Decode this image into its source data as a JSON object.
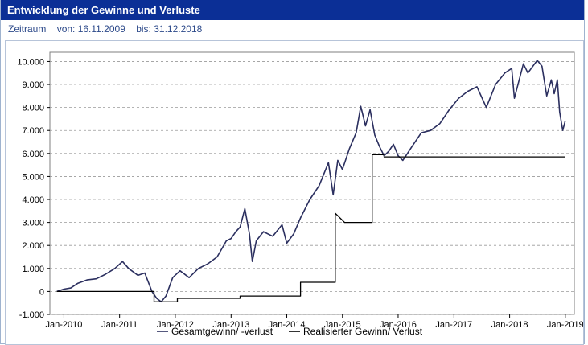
{
  "header": {
    "title": "Entwicklung der Gewinne und Verluste"
  },
  "period": {
    "label": "Zeitraum",
    "from": "von: 16.11.2009",
    "to": "bis: 31.12.2018"
  },
  "colors": {
    "header_bg": "#0b2f96",
    "series_total": "#2b2f5f",
    "series_realized": "#000000",
    "grid": "#9a9a9a"
  },
  "chart_data": {
    "type": "line",
    "xlabel": "",
    "ylabel": "",
    "ylim": [
      -1000,
      10400
    ],
    "yticks": [
      {
        "v": -1000,
        "label": "-1.000"
      },
      {
        "v": 0,
        "label": "0"
      },
      {
        "v": 1000,
        "label": "1.000"
      },
      {
        "v": 2000,
        "label": "2.000"
      },
      {
        "v": 3000,
        "label": "3.000"
      },
      {
        "v": 4000,
        "label": "4.000"
      },
      {
        "v": 5000,
        "label": "5.000"
      },
      {
        "v": 6000,
        "label": "6.000"
      },
      {
        "v": 7000,
        "label": "7.000"
      },
      {
        "v": 8000,
        "label": "8.000"
      },
      {
        "v": 9000,
        "label": "9.000"
      },
      {
        "v": 10000,
        "label": "10.000"
      }
    ],
    "xlim": [
      "2009-10-01",
      "2019-03-01"
    ],
    "xticks": [
      {
        "v": "2010-01-01",
        "label": "Jan-2010"
      },
      {
        "v": "2011-01-01",
        "label": "Jan-2011"
      },
      {
        "v": "2012-01-01",
        "label": "Jan-2012"
      },
      {
        "v": "2013-01-01",
        "label": "Jan-2013"
      },
      {
        "v": "2014-01-01",
        "label": "Jan-2014"
      },
      {
        "v": "2015-01-01",
        "label": "Jan-2015"
      },
      {
        "v": "2016-01-01",
        "label": "Jan-2016"
      },
      {
        "v": "2017-01-01",
        "label": "Jan-2017"
      },
      {
        "v": "2018-01-01",
        "label": "Jan-2018"
      },
      {
        "v": "2019-01-01",
        "label": "Jan-2019"
      }
    ],
    "grid": true,
    "legend": "bottom",
    "series": [
      {
        "name": "Gesamtgewinn/ -verlust",
        "color": "#2b2f5f",
        "points": [
          [
            "2009-11-16",
            0
          ],
          [
            "2010-01-01",
            100
          ],
          [
            "2010-02-15",
            150
          ],
          [
            "2010-04-01",
            350
          ],
          [
            "2010-06-01",
            500
          ],
          [
            "2010-08-01",
            550
          ],
          [
            "2010-10-01",
            750
          ],
          [
            "2010-12-01",
            1000
          ],
          [
            "2011-01-20",
            1300
          ],
          [
            "2011-03-01",
            1000
          ],
          [
            "2011-05-01",
            700
          ],
          [
            "2011-06-15",
            800
          ],
          [
            "2011-08-01",
            0
          ],
          [
            "2011-09-01",
            -300
          ],
          [
            "2011-10-01",
            -450
          ],
          [
            "2011-11-01",
            -200
          ],
          [
            "2011-12-15",
            600
          ],
          [
            "2012-02-01",
            900
          ],
          [
            "2012-04-01",
            600
          ],
          [
            "2012-06-01",
            1000
          ],
          [
            "2012-08-01",
            1200
          ],
          [
            "2012-10-01",
            1500
          ],
          [
            "2012-12-01",
            2200
          ],
          [
            "2013-01-01",
            2300
          ],
          [
            "2013-02-01",
            2600
          ],
          [
            "2013-03-01",
            2800
          ],
          [
            "2013-04-01",
            3600
          ],
          [
            "2013-05-01",
            2500
          ],
          [
            "2013-05-20",
            1300
          ],
          [
            "2013-06-15",
            2200
          ],
          [
            "2013-08-01",
            2600
          ],
          [
            "2013-10-01",
            2400
          ],
          [
            "2013-12-01",
            2900
          ],
          [
            "2014-01-01",
            2100
          ],
          [
            "2014-02-15",
            2500
          ],
          [
            "2014-04-01",
            3200
          ],
          [
            "2014-06-01",
            4000
          ],
          [
            "2014-08-01",
            4600
          ],
          [
            "2014-10-01",
            5600
          ],
          [
            "2014-11-01",
            4200
          ],
          [
            "2014-12-01",
            5700
          ],
          [
            "2015-01-01",
            5300
          ],
          [
            "2015-02-15",
            6200
          ],
          [
            "2015-04-01",
            6900
          ],
          [
            "2015-05-01",
            8050
          ],
          [
            "2015-06-01",
            7200
          ],
          [
            "2015-07-01",
            7900
          ],
          [
            "2015-08-01",
            6800
          ],
          [
            "2015-09-01",
            6300
          ],
          [
            "2015-10-01",
            5900
          ],
          [
            "2015-11-01",
            6100
          ],
          [
            "2015-12-01",
            6400
          ],
          [
            "2016-01-01",
            5900
          ],
          [
            "2016-02-01",
            5700
          ],
          [
            "2016-04-01",
            6300
          ],
          [
            "2016-06-01",
            6900
          ],
          [
            "2016-08-01",
            7000
          ],
          [
            "2016-10-01",
            7300
          ],
          [
            "2016-12-01",
            7900
          ],
          [
            "2017-02-01",
            8400
          ],
          [
            "2017-04-01",
            8700
          ],
          [
            "2017-06-01",
            8900
          ],
          [
            "2017-08-01",
            8000
          ],
          [
            "2017-10-01",
            9000
          ],
          [
            "2017-12-01",
            9500
          ],
          [
            "2018-01-15",
            9700
          ],
          [
            "2018-02-01",
            8400
          ],
          [
            "2018-04-01",
            9900
          ],
          [
            "2018-05-01",
            9500
          ],
          [
            "2018-07-01",
            10050
          ],
          [
            "2018-08-01",
            9800
          ],
          [
            "2018-09-01",
            8500
          ],
          [
            "2018-10-01",
            9200
          ],
          [
            "2018-10-20",
            8600
          ],
          [
            "2018-11-10",
            9200
          ],
          [
            "2018-11-25",
            7800
          ],
          [
            "2018-12-15",
            7000
          ],
          [
            "2018-12-31",
            7400
          ]
        ]
      },
      {
        "name": "Realisierter Gewinn/ Verlust",
        "color": "#000000",
        "step": true,
        "points": [
          [
            "2009-11-16",
            0
          ],
          [
            "2011-08-15",
            0
          ],
          [
            "2011-08-15",
            -450
          ],
          [
            "2012-01-15",
            -450
          ],
          [
            "2012-01-15",
            -300
          ],
          [
            "2013-03-01",
            -300
          ],
          [
            "2013-03-01",
            -200
          ],
          [
            "2014-04-01",
            -200
          ],
          [
            "2014-04-01",
            400
          ],
          [
            "2014-11-15",
            400
          ],
          [
            "2014-11-15",
            3400
          ],
          [
            "2015-01-15",
            3000
          ],
          [
            "2015-07-15",
            3000
          ],
          [
            "2015-07-15",
            5950
          ],
          [
            "2015-10-01",
            5950
          ],
          [
            "2015-10-01",
            5850
          ],
          [
            "2018-12-31",
            5850
          ]
        ]
      }
    ]
  }
}
